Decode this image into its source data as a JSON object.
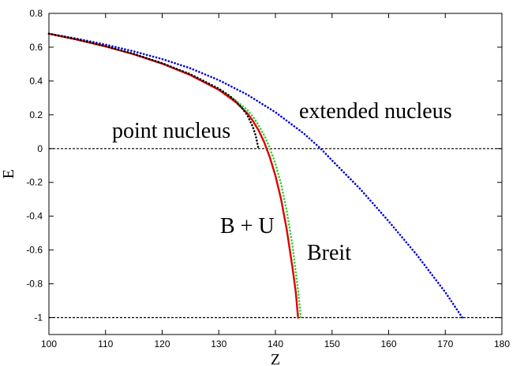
{
  "chart_data": {
    "type": "line",
    "xlabel": "Z",
    "ylabel": "E",
    "xlim": [
      100,
      180
    ],
    "ylim": [
      -1.1,
      0.8
    ],
    "x_ticks": [
      "100",
      "110",
      "120",
      "130",
      "140",
      "150",
      "160",
      "170",
      "180"
    ],
    "y_ticks": [
      "-1",
      "-0.8",
      "-0.6",
      "-0.4",
      "-0.2",
      "0",
      "0.2",
      "0.4",
      "0.6",
      "0.8"
    ],
    "grid": false,
    "reference_lines": [
      {
        "y": 0,
        "style": "dashed",
        "color": "#000000"
      },
      {
        "y": -1,
        "style": "dashed",
        "color": "#000000"
      }
    ],
    "series": [
      {
        "key": "point",
        "color": "#000000",
        "style": "dotted",
        "x": [
          100,
          105,
          110,
          115,
          120,
          125,
          130,
          132,
          134,
          135,
          136,
          136.5,
          137
        ],
        "y": [
          0.68,
          0.645,
          0.605,
          0.56,
          0.505,
          0.44,
          0.355,
          0.31,
          0.245,
          0.2,
          0.13,
          0.08,
          0.0
        ]
      },
      {
        "key": "extended",
        "color": "#0000cc",
        "style": "dotted",
        "x": [
          100,
          105,
          110,
          115,
          120,
          125,
          130,
          135,
          140,
          145,
          148,
          150,
          155,
          160,
          165,
          170,
          173
        ],
        "y": [
          0.68,
          0.65,
          0.615,
          0.575,
          0.53,
          0.475,
          0.405,
          0.32,
          0.215,
          0.09,
          0.0,
          -0.07,
          -0.24,
          -0.43,
          -0.63,
          -0.85,
          -1.0
        ]
      },
      {
        "key": "bu",
        "color": "#dd0000",
        "style": "solid",
        "x": [
          100,
          105,
          110,
          115,
          120,
          125,
          130,
          133,
          135,
          136,
          137,
          138,
          139,
          140,
          141,
          142,
          143,
          143.6,
          144
        ],
        "y": [
          0.68,
          0.645,
          0.605,
          0.558,
          0.503,
          0.435,
          0.348,
          0.275,
          0.21,
          0.165,
          0.11,
          0.04,
          -0.05,
          -0.16,
          -0.3,
          -0.48,
          -0.7,
          -0.85,
          -1.0
        ]
      },
      {
        "key": "breit",
        "color": "#33cc33",
        "style": "dotted",
        "x": [
          130,
          133,
          135,
          136,
          137,
          138,
          139,
          140,
          141,
          142,
          143,
          144,
          144.5
        ],
        "y": [
          0.348,
          0.285,
          0.23,
          0.19,
          0.14,
          0.08,
          0.005,
          -0.09,
          -0.21,
          -0.37,
          -0.57,
          -0.84,
          -1.0
        ]
      }
    ],
    "annotations": {
      "point": "point nucleus",
      "extended": "extended nucleus",
      "bu": "B + U",
      "breit": "Breit"
    }
  }
}
